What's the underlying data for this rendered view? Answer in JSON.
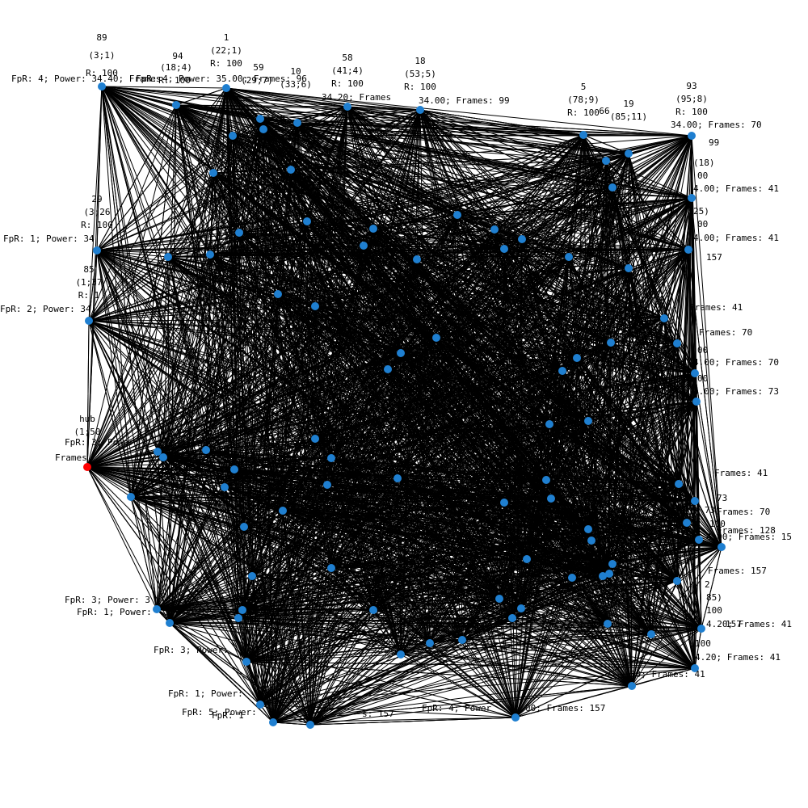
{
  "colors": {
    "edge": "#000000",
    "node": "#1f7fd0",
    "hub": "#ff0000",
    "background": "#ffffff",
    "text": "#000000"
  },
  "hub": {
    "id": "hub",
    "coord": "(1;50",
    "lines": [
      "FpR: 3; Power:",
      "Frames"
    ]
  },
  "labeled_nodes": [
    {
      "id": "89",
      "coord": "(3;1)",
      "r": "R: 100",
      "info": "FpR: 4; Power: 34.40; Frames"
    },
    {
      "id": "94",
      "coord": "(18;4)",
      "r": "R: 100",
      "info": "FpR: 4; Power: 35.00; Frames: 96"
    },
    {
      "id": "1",
      "coord": "(22;1)",
      "r": "R: 100",
      "info": ""
    },
    {
      "id": "59",
      "coord": "(29;7)",
      "r": "",
      "info": ""
    },
    {
      "id": "10",
      "coord": "(33;6)",
      "r": "",
      "info": ""
    },
    {
      "id": "58",
      "coord": "(41;4)",
      "r": "R: 100",
      "info": "34.20; Frames"
    },
    {
      "id": "18",
      "coord": "(53;5)",
      "r": "R: 100",
      "info": "34.00; Frames: 99"
    },
    {
      "id": "5",
      "coord": "(78;9)",
      "r": "R: 100",
      "info": ""
    },
    {
      "id": "66",
      "coord": "",
      "r": "",
      "info": ""
    },
    {
      "id": "19",
      "coord": "(85;11)",
      "r": "",
      "info": ""
    },
    {
      "id": "93",
      "coord": "(95;8)",
      "r": "R: 100",
      "info": "34.00; Frames: 70"
    },
    {
      "id": "29",
      "coord": "(3;26",
      "r": "R: 100",
      "info": "FpR: 1; Power: 34"
    },
    {
      "id": "85",
      "coord": "(1;37",
      "r": "R: 1",
      "info": "FpR: 2; Power: 34"
    }
  ],
  "right_labels": [
    "99",
    "(18)",
    "00",
    "4.00; Frames: 41",
    "25)",
    "00",
    "4.00; Frames: 41",
    "157",
    "Frames: 41",
    "Frames: 70",
    "00",
    "4.00; Frames: 70",
    "00",
    "4.00; Frames: 73",
    "Frames: 41",
    "73",
    "73)",
    "Frames: 70",
    "100",
    "Frames: 128",
    "4.00; Frames: 15",
    "Frames: 157",
    "2",
    "85)",
    "100",
    "4.20; Frames: 41",
    "157",
    "100",
    "4.20; Frames: 41",
    "00; Frames: 41"
  ],
  "bottom_labels": [
    "FpR: 3; Power: 3",
    "FpR: 1; Power:",
    "FpR: 3; Power:",
    "FpR: 1; Power:",
    "FpR: 5; Power:",
    "FpR: 1",
    "s: 157",
    "FpR: 4; Power",
    "00; Frames: 157"
  ]
}
